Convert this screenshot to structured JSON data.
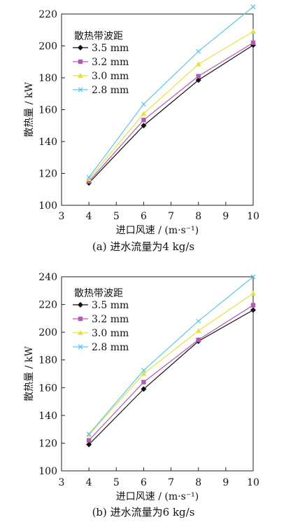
{
  "chart_data": [
    {
      "type": "line",
      "legend_title": "散热带波距",
      "legend_position": "top-left",
      "xlabel": "进口风速 / (m·s⁻¹)",
      "ylabel": "散热量 / kW",
      "caption": "(a) 进水流量为4 kg/s",
      "xlim": [
        3,
        10
      ],
      "ylim": [
        100,
        220
      ],
      "xticks": [
        "3",
        "4",
        "5",
        "6",
        "7",
        "8",
        "9",
        "10"
      ],
      "yticks": [
        "100",
        "120",
        "140",
        "160",
        "180",
        "200",
        "220"
      ],
      "x": [
        4,
        6,
        8,
        10
      ],
      "series": [
        {
          "name": "3.5 mm",
          "values": [
            114,
            150,
            178.5,
            200.5
          ],
          "color": "#111111",
          "marker": "diamond"
        },
        {
          "name": "3.2 mm",
          "values": [
            115,
            153.5,
            181,
            202
          ],
          "color": "#b05cb0",
          "marker": "square"
        },
        {
          "name": "3.0 mm",
          "values": [
            116.5,
            157.5,
            188.5,
            209
          ],
          "color": "#e8e040",
          "marker": "triangle"
        },
        {
          "name": "2.8 mm",
          "values": [
            117.5,
            163.5,
            196.5,
            224.5
          ],
          "color": "#5ac8e8",
          "marker": "x"
        }
      ]
    },
    {
      "type": "line",
      "legend_title": "散热带波距",
      "legend_position": "top-left",
      "xlabel": "进口风速 / (m·s⁻¹)",
      "ylabel": "散热量 / kW",
      "caption": "(b) 进水流量为6 kg/s",
      "xlim": [
        3,
        10
      ],
      "ylim": [
        100,
        240
      ],
      "xticks": [
        "3",
        "4",
        "5",
        "6",
        "7",
        "8",
        "9",
        "10"
      ],
      "yticks": [
        "100",
        "120",
        "140",
        "160",
        "180",
        "200",
        "220",
        "240"
      ],
      "x": [
        4,
        6,
        8,
        10
      ],
      "series": [
        {
          "name": "3.5 mm",
          "values": [
            119,
            159,
            193.5,
            216
          ],
          "color": "#111111",
          "marker": "diamond"
        },
        {
          "name": "3.2 mm",
          "values": [
            122,
            164,
            194.5,
            219.5
          ],
          "color": "#b05cb0",
          "marker": "square"
        },
        {
          "name": "3.0 mm",
          "values": [
            126,
            170,
            201,
            228
          ],
          "color": "#e8e040",
          "marker": "triangle"
        },
        {
          "name": "2.8 mm",
          "values": [
            126.5,
            172.5,
            208,
            240
          ],
          "color": "#5ac8e8",
          "marker": "x"
        }
      ]
    }
  ]
}
